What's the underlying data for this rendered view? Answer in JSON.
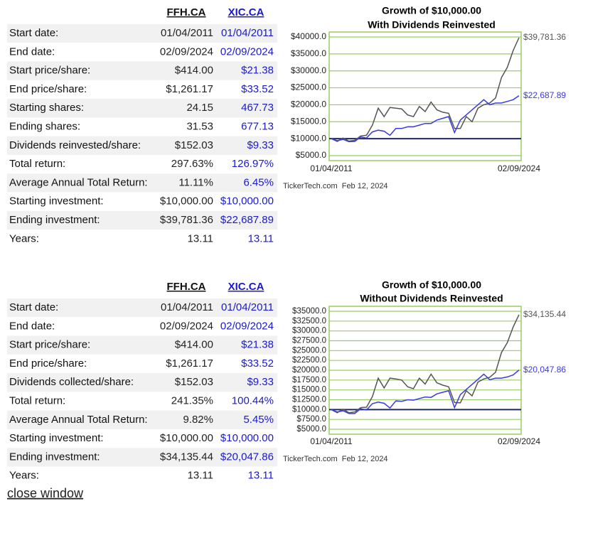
{
  "tables": [
    {
      "headers": [
        "FFH.CA",
        "XIC.CA"
      ],
      "rows": [
        [
          "Start date:",
          "01/04/2011",
          "01/04/2011"
        ],
        [
          "End date:",
          "02/09/2024",
          "02/09/2024"
        ],
        [
          "Start price/share:",
          "$414.00",
          "$21.38"
        ],
        [
          "End price/share:",
          "$1,261.17",
          "$33.52"
        ],
        [
          "Starting shares:",
          "24.15",
          "467.73"
        ],
        [
          "Ending shares:",
          "31.53",
          "677.13"
        ],
        [
          "Dividends reinvested/share:",
          "$152.03",
          "$9.33"
        ],
        [
          "Total return:",
          "297.63%",
          "126.97%"
        ],
        [
          "Average Annual Total Return:",
          "11.11%",
          "6.45%"
        ],
        [
          "Starting investment:",
          "$10,000.00",
          "$10,000.00"
        ],
        [
          "Ending investment:",
          "$39,781.36",
          "$22,687.89"
        ],
        [
          "Years:",
          "13.11",
          "13.11"
        ]
      ]
    },
    {
      "headers": [
        "FFH.CA",
        "XIC.CA"
      ],
      "rows": [
        [
          "Start date:",
          "01/04/2011",
          "01/04/2011"
        ],
        [
          "End date:",
          "02/09/2024",
          "02/09/2024"
        ],
        [
          "Start price/share:",
          "$414.00",
          "$21.38"
        ],
        [
          "End price/share:",
          "$1,261.17",
          "$33.52"
        ],
        [
          "Dividends collected/share:",
          "$152.03",
          "$9.33"
        ],
        [
          "Total return:",
          "241.35%",
          "100.44%"
        ],
        [
          "Average Annual Total Return:",
          "9.82%",
          "5.45%"
        ],
        [
          "Starting investment:",
          "$10,000.00",
          "$10,000.00"
        ],
        [
          "Ending investment:",
          "$34,135.44",
          "$20,047.86"
        ],
        [
          "Years:",
          "13.11",
          "13.11"
        ]
      ]
    }
  ],
  "chart_data": [
    {
      "type": "line",
      "title": "Growth of $10,000.00",
      "subtitle": "With Dividends Reinvested",
      "categories": [
        "01/04/2011",
        null,
        null,
        null,
        null,
        null,
        null,
        null,
        null,
        null,
        null,
        null,
        null,
        null,
        null,
        null,
        null,
        null,
        null,
        null,
        null,
        null,
        null,
        null,
        null,
        null,
        null,
        null,
        null,
        null,
        null,
        null,
        "02/09/2024"
      ],
      "ylim": [
        5000,
        40000
      ],
      "yticks": [
        {
          "value": 40000,
          "label": "$40000.0"
        },
        {
          "value": 35000,
          "label": "$35000.0"
        },
        {
          "value": 30000,
          "label": "$30000.0"
        },
        {
          "value": 25000,
          "label": "$25000.0"
        },
        {
          "value": 20000,
          "label": "$20000.0"
        },
        {
          "value": 15000,
          "label": "$15000.0"
        },
        {
          "value": 10000,
          "label": "$10000.0"
        },
        {
          "value": 5000,
          "label": "$5000.0"
        }
      ],
      "grid": true,
      "grid_color": "#99cc66",
      "baseline": 10000,
      "baseline_color": "#1f2a5c",
      "series": [
        {
          "color": "#555555",
          "values": [
            10000,
            9200,
            10200,
            9300,
            9500,
            10800,
            11000,
            14000,
            19000,
            16500,
            19200,
            19000,
            18800,
            17000,
            16500,
            19500,
            18000,
            20800,
            18500,
            17800,
            17500,
            13000,
            13000,
            16500,
            15000,
            19000,
            20000,
            20500,
            22000,
            28000,
            31000,
            36000,
            39781.36
          ],
          "value_labels": [
            null,
            null,
            null,
            null,
            null,
            null,
            null,
            null,
            null,
            null,
            null,
            null,
            null,
            null,
            null,
            null,
            null,
            null,
            null,
            null,
            null,
            null,
            null,
            null,
            null,
            null,
            null,
            null,
            null,
            null,
            null,
            null,
            "$39,781.36"
          ]
        },
        {
          "color": "#3a3ae0",
          "values": [
            10000,
            9400,
            9800,
            9100,
            9200,
            10500,
            10200,
            12000,
            12500,
            12200,
            11000,
            13000,
            13000,
            13500,
            13500,
            14000,
            14500,
            14500,
            15500,
            16000,
            16500,
            11800,
            15500,
            17000,
            18500,
            20000,
            21500,
            20000,
            20500,
            20500,
            21000,
            21500,
            22687.89
          ],
          "value_labels": [
            null,
            null,
            null,
            null,
            null,
            null,
            null,
            null,
            null,
            null,
            null,
            null,
            null,
            null,
            null,
            null,
            null,
            null,
            null,
            null,
            null,
            null,
            null,
            null,
            null,
            null,
            null,
            null,
            null,
            null,
            null,
            null,
            "$22,687.89"
          ]
        }
      ],
      "source": "TickerTech.com  Feb 12, 2024"
    },
    {
      "type": "line",
      "title": "Growth of $10,000.00",
      "subtitle": "Without Dividends Reinvested",
      "categories": [
        "01/04/2011",
        null,
        null,
        null,
        null,
        null,
        null,
        null,
        null,
        null,
        null,
        null,
        null,
        null,
        null,
        null,
        null,
        null,
        null,
        null,
        null,
        null,
        null,
        null,
        null,
        null,
        null,
        null,
        null,
        null,
        null,
        null,
        "02/09/2024"
      ],
      "ylim": [
        5000,
        35000
      ],
      "yticks": [
        {
          "value": 35000,
          "label": "$35000.0"
        },
        {
          "value": 32500,
          "label": "$32500.0"
        },
        {
          "value": 30000,
          "label": "$30000.0"
        },
        {
          "value": 27500,
          "label": "$27500.0"
        },
        {
          "value": 25000,
          "label": "$25000.0"
        },
        {
          "value": 22500,
          "label": "$22500.0"
        },
        {
          "value": 20000,
          "label": "$20000.0"
        },
        {
          "value": 17500,
          "label": "$17500.0"
        },
        {
          "value": 15000,
          "label": "$15000.0"
        },
        {
          "value": 12500,
          "label": "$12500.0"
        },
        {
          "value": 10000,
          "label": "$10000.0"
        },
        {
          "value": 7500,
          "label": "$7500.0"
        },
        {
          "value": 5000,
          "label": "$5000.0"
        }
      ],
      "grid": true,
      "grid_color": "#99cc66",
      "baseline": 10000,
      "baseline_color": "#1f2a5c",
      "series": [
        {
          "color": "#555555",
          "values": [
            10000,
            9200,
            10100,
            9200,
            9400,
            10500,
            10600,
            13300,
            18000,
            15500,
            18000,
            17800,
            17500,
            15800,
            15300,
            18000,
            16500,
            19000,
            16800,
            16200,
            15800,
            11800,
            11700,
            14800,
            13500,
            17000,
            17800,
            18200,
            19500,
            24500,
            27000,
            31000,
            34135.44
          ],
          "value_labels": [
            null,
            null,
            null,
            null,
            null,
            null,
            null,
            null,
            null,
            null,
            null,
            null,
            null,
            null,
            null,
            null,
            null,
            null,
            null,
            null,
            null,
            null,
            null,
            null,
            null,
            null,
            null,
            null,
            null,
            null,
            null,
            null,
            "$34,135.44"
          ]
        },
        {
          "color": "#3a3ae0",
          "values": [
            10000,
            9400,
            9700,
            9000,
            9000,
            10200,
            9900,
            11500,
            11900,
            11600,
            10400,
            12200,
            12100,
            12500,
            12400,
            12800,
            13200,
            13100,
            14000,
            14400,
            14800,
            10500,
            13800,
            15100,
            16400,
            17700,
            19000,
            17600,
            18000,
            18000,
            18300,
            18800,
            20047.86
          ],
          "value_labels": [
            null,
            null,
            null,
            null,
            null,
            null,
            null,
            null,
            null,
            null,
            null,
            null,
            null,
            null,
            null,
            null,
            null,
            null,
            null,
            null,
            null,
            null,
            null,
            null,
            null,
            null,
            null,
            null,
            null,
            null,
            null,
            null,
            "$20,047.86"
          ]
        }
      ],
      "source": "TickerTech.com  Feb 12, 2024"
    }
  ],
  "close_link": "close window"
}
